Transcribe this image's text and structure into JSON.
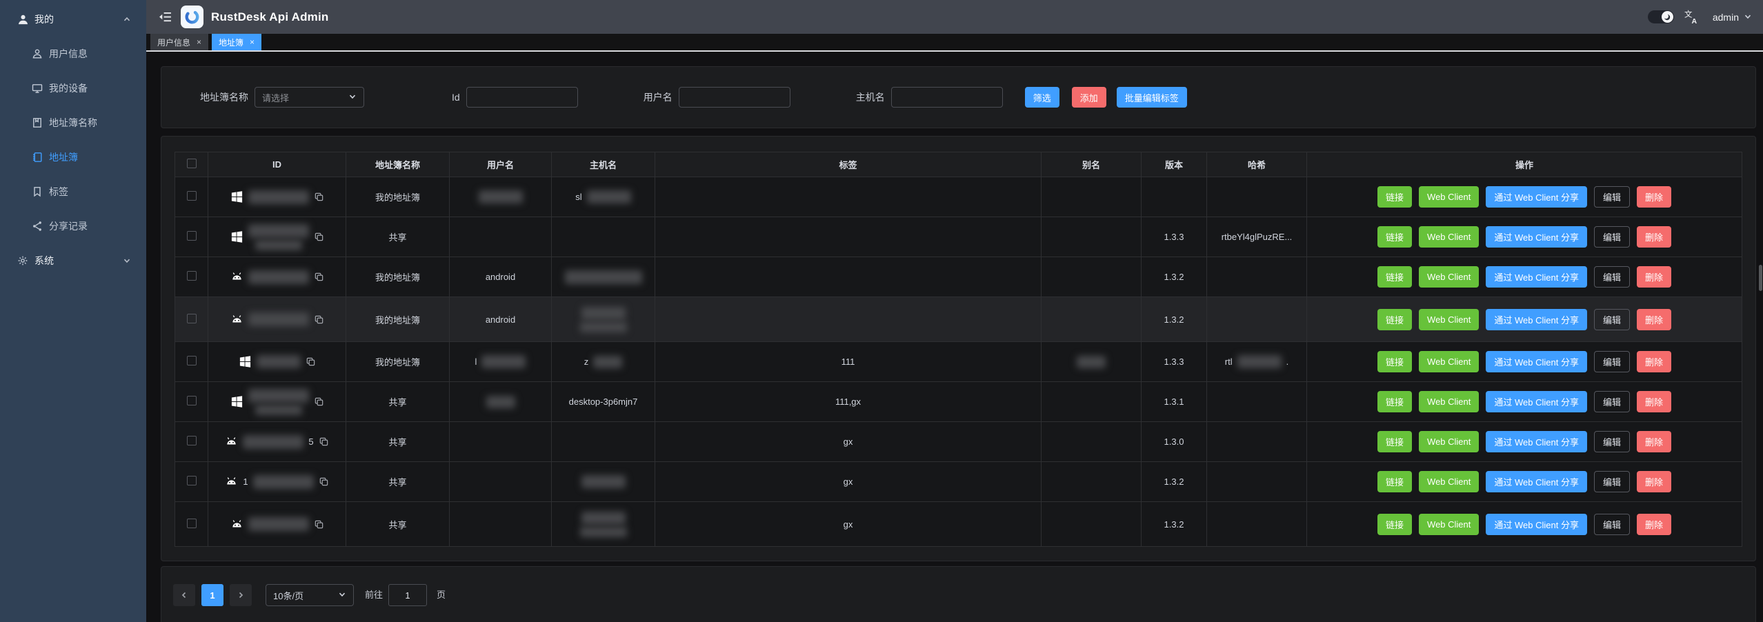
{
  "colors": {
    "accent": "#409eff",
    "success": "#67c23a",
    "danger": "#f56c6c",
    "sidebar_bg": "#304156",
    "header_bg": "#41454e",
    "card_bg": "#1c1d1f",
    "page_bg": "#111113"
  },
  "header": {
    "title": "RustDesk Api Admin",
    "username": "admin",
    "logo_icon": "rustdesk-logo",
    "fold_icon": "fold-sidebar-icon",
    "theme_toggle_icon": "moon-icon",
    "translate_icon": "translate-icon"
  },
  "sidebar": {
    "sections": [
      {
        "label": "我的",
        "icon": "user-icon",
        "chevron": "up",
        "items": [
          {
            "label": "用户信息",
            "icon": "user-outline-icon",
            "active": false
          },
          {
            "label": "我的设备",
            "icon": "monitor-icon",
            "active": false
          },
          {
            "label": "地址簿名称",
            "icon": "notebook-name-icon",
            "active": false
          },
          {
            "label": "地址簿",
            "icon": "address-book-icon",
            "active": true
          },
          {
            "label": "标签",
            "icon": "tag-bookmark-icon",
            "active": false
          },
          {
            "label": "分享记录",
            "icon": "share-icon",
            "active": false
          }
        ]
      },
      {
        "label": "系统",
        "icon": "gear-icon",
        "chevron": "down",
        "items": []
      }
    ]
  },
  "tabs": [
    {
      "label": "用户信息",
      "active": false,
      "closable": true
    },
    {
      "label": "地址簿",
      "active": true,
      "closable": true
    }
  ],
  "filter": {
    "address_book_label": "地址簿名称",
    "address_book_placeholder": "请选择",
    "id_label": "Id",
    "username_label": "用户名",
    "hostname_label": "主机名",
    "filter_button": "筛选",
    "add_button": "添加",
    "batch_edit_button": "批量编辑标签"
  },
  "table": {
    "columns": [
      "ID",
      "地址簿名称",
      "用户名",
      "主机名",
      "标签",
      "别名",
      "版本",
      "哈希",
      "操作"
    ],
    "row_actions": [
      {
        "label": "链接",
        "style": "success",
        "name": "link-button"
      },
      {
        "label": "Web Client",
        "style": "success",
        "name": "web-client-button"
      },
      {
        "label": "通过 Web Client 分享",
        "style": "primary",
        "name": "share-web-client-button"
      },
      {
        "label": "编辑",
        "style": "plain",
        "name": "edit-button"
      },
      {
        "label": "删除",
        "style": "danger",
        "name": "delete-button"
      }
    ],
    "rows": [
      {
        "os_icon": "windows-icon",
        "id": {
          "redact": "lg"
        },
        "name": "我的地址簿",
        "username": {
          "redact": "md"
        },
        "hostname": {
          "prefix": "sl",
          "redact": "md"
        },
        "tags": "",
        "alias": "",
        "version": "",
        "hash": "",
        "highlight": false,
        "tall": false
      },
      {
        "os_icon": "windows-icon",
        "id": {
          "redact": "lg",
          "lines": 2
        },
        "name": "共享",
        "username": "",
        "hostname": "",
        "tags": "",
        "alias": "",
        "version": "1.3.3",
        "hash": "rtbeYl4glPuzRE...",
        "highlight": false,
        "tall": false
      },
      {
        "os_icon": "android-icon",
        "id": {
          "redact": "lg"
        },
        "name": "我的地址簿",
        "username": "android",
        "hostname": {
          "redact": "xl"
        },
        "tags": "",
        "alias": "",
        "version": "1.3.2",
        "hash": "",
        "highlight": false,
        "tall": false
      },
      {
        "os_icon": "android-icon",
        "id": {
          "redact": "lg"
        },
        "name": "我的地址簿",
        "username": "android",
        "hostname": {
          "redact": "md",
          "lines": 2
        },
        "tags": "",
        "alias": "",
        "version": "1.3.2",
        "hash": "",
        "highlight": true,
        "tall": true
      },
      {
        "os_icon": "windows-icon",
        "id": {
          "redact": "md"
        },
        "name": "我的地址簿",
        "username": {
          "prefix": "l",
          "redact": "md"
        },
        "hostname": {
          "prefix": "z",
          "redact": "sm"
        },
        "tags": "111",
        "alias": {
          "redact": "sm"
        },
        "version": "1.3.3",
        "hash": {
          "prefix": "rtl",
          "redact": "md",
          "suffix": "."
        },
        "highlight": false,
        "tall": false
      },
      {
        "os_icon": "windows-icon",
        "id": {
          "redact": "lg",
          "lines": 2
        },
        "name": "共享",
        "username": {
          "redact": "sm"
        },
        "hostname": "desktop-3p6mjn7",
        "tags": "111,gx",
        "alias": "",
        "version": "1.3.1",
        "hash": "",
        "highlight": false,
        "tall": false
      },
      {
        "os_icon": "android-icon",
        "id": {
          "redact": "lg",
          "suffix": "5"
        },
        "name": "共享",
        "username": "",
        "hostname": "",
        "tags": "gx",
        "alias": "",
        "version": "1.3.0",
        "hash": "",
        "highlight": false,
        "tall": false
      },
      {
        "os_icon": "android-icon",
        "id": {
          "prefix": "1",
          "redact": "lg"
        },
        "name": "共享",
        "username": "",
        "hostname": {
          "redact": "md"
        },
        "tags": "gx",
        "alias": "",
        "version": "1.3.2",
        "hash": "",
        "highlight": false,
        "tall": false
      },
      {
        "os_icon": "android-icon",
        "id": {
          "redact": "lg"
        },
        "name": "共享",
        "username": "",
        "hostname": {
          "redact": "md",
          "lines": 2
        },
        "tags": "gx",
        "alias": "",
        "version": "1.3.2",
        "hash": "",
        "highlight": false,
        "tall": true
      }
    ]
  },
  "pagination": {
    "current": "1",
    "page_size": "10条/页",
    "goto_label": "前往",
    "goto_value": "1",
    "unit_label": "页"
  }
}
